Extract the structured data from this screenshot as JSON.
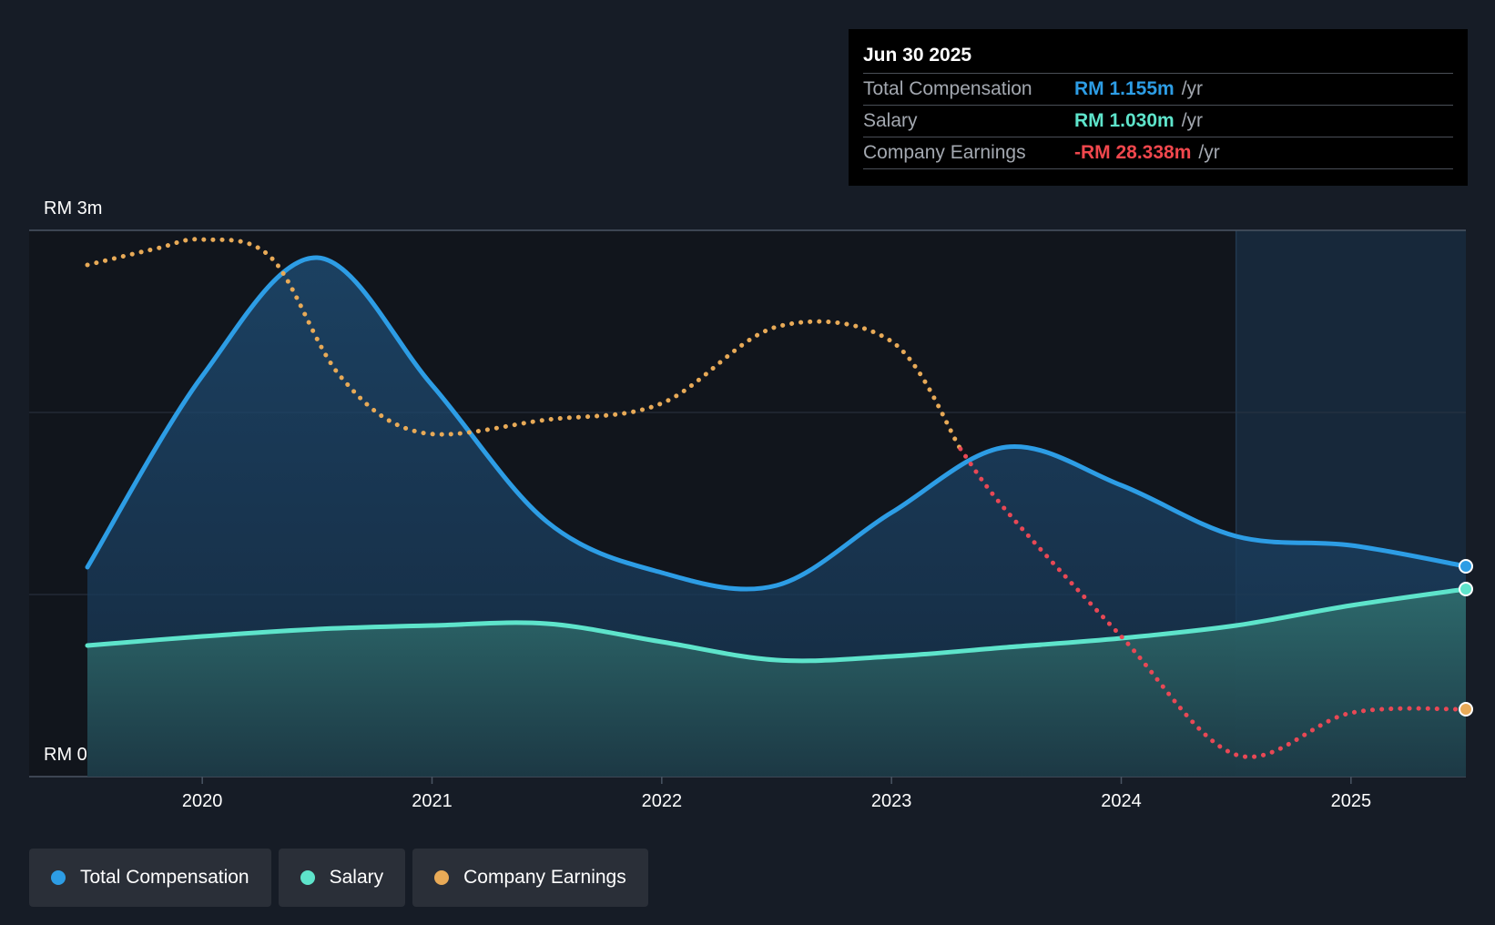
{
  "colors": {
    "total": "#2d9de5",
    "salary": "#5ee4cb",
    "earnings": "#e8aa57",
    "earnings_negative": "#e84855",
    "negative_text": "#f0474d"
  },
  "tooltip": {
    "date": "Jun 30 2025",
    "rows": [
      {
        "label": "Total Compensation",
        "value": "RM 1.155m",
        "unit": "/yr"
      },
      {
        "label": "Salary",
        "value": "RM 1.030m",
        "unit": "/yr"
      },
      {
        "label": "Company Earnings",
        "value": "-RM 28.338m",
        "unit": "/yr"
      }
    ]
  },
  "legend": [
    {
      "label": "Total Compensation"
    },
    {
      "label": "Salary"
    },
    {
      "label": "Company Earnings"
    }
  ],
  "chart_data": {
    "type": "line",
    "title": "",
    "y_top_label": "RM 3m",
    "y_bottom_label": "RM 0",
    "ylim": [
      0,
      3
    ],
    "xlim": [
      2019.5,
      2025.5
    ],
    "x_ticks": [
      "2020",
      "2021",
      "2022",
      "2023",
      "2024",
      "2025"
    ],
    "forecast_start": 2024.5,
    "series": [
      {
        "name": "Total Compensation",
        "x": [
          2019.5,
          2020.0,
          2020.5,
          2021.0,
          2021.5,
          2022.0,
          2022.5,
          2023.0,
          2023.5,
          2024.0,
          2024.5,
          2025.0,
          2025.5
        ],
        "values": [
          1.15,
          2.2,
          2.85,
          2.15,
          1.4,
          1.12,
          1.05,
          1.45,
          1.81,
          1.6,
          1.32,
          1.27,
          1.155
        ]
      },
      {
        "name": "Salary",
        "x": [
          2019.5,
          2020.0,
          2020.5,
          2021.0,
          2021.5,
          2022.0,
          2022.5,
          2023.0,
          2023.5,
          2024.0,
          2024.5,
          2025.0,
          2025.5
        ],
        "values": [
          0.72,
          0.77,
          0.81,
          0.83,
          0.84,
          0.74,
          0.64,
          0.66,
          0.71,
          0.76,
          0.83,
          0.94,
          1.03
        ]
      },
      {
        "name": "Company Earnings",
        "x": [
          2019.5,
          2019.8,
          2020.0,
          2020.3,
          2020.6,
          2020.95,
          2021.5,
          2022.0,
          2022.5,
          2023.0,
          2023.3,
          2023.5,
          2024.0,
          2024.5,
          2025.0,
          2025.5
        ],
        "values": [
          2.81,
          2.9,
          2.95,
          2.85,
          2.2,
          1.89,
          1.96,
          2.05,
          2.47,
          2.39,
          1.8,
          1.46,
          0.77,
          0.12,
          0.35,
          0.37
        ],
        "negative_after": 2023.3
      }
    ]
  }
}
